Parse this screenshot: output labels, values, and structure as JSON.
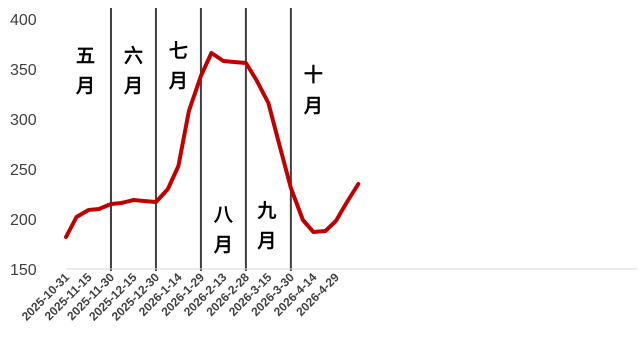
{
  "chart_data": {
    "type": "line",
    "title": "",
    "xlabel": "",
    "ylabel": "",
    "ylim": [
      150,
      400
    ],
    "yticks": [
      "150",
      "200",
      "250",
      "300",
      "350",
      "400"
    ],
    "grid": false,
    "legend": "none",
    "x_tick_labels": [
      "2025-10-31",
      "2025-11-15",
      "2025-11-30",
      "2025-12-15",
      "2025-12-30",
      "2026-1-14",
      "2026-1-29",
      "2026-2-13",
      "2026-2-28",
      "2026-3-15",
      "2026-3-30",
      "2026-4-14",
      "2026-4-29"
    ],
    "series": [
      {
        "color": "#c00000",
        "points": [
          {
            "x": "2025-10-31",
            "y": 182
          },
          {
            "x": "2025-11-07",
            "y": 202
          },
          {
            "x": "2025-11-15",
            "y": 209
          },
          {
            "x": "2025-11-22",
            "y": 210
          },
          {
            "x": "2025-11-30",
            "y": 215
          },
          {
            "x": "2025-12-07",
            "y": 216
          },
          {
            "x": "2025-12-15",
            "y": 219
          },
          {
            "x": "2025-12-22",
            "y": 218
          },
          {
            "x": "2025-12-30",
            "y": 217
          },
          {
            "x": "2026-01-07",
            "y": 230
          },
          {
            "x": "2026-01-14",
            "y": 253
          },
          {
            "x": "2026-01-21",
            "y": 308
          },
          {
            "x": "2026-01-29",
            "y": 343
          },
          {
            "x": "2026-02-05",
            "y": 366
          },
          {
            "x": "2026-02-13",
            "y": 358
          },
          {
            "x": "2026-02-20",
            "y": 357
          },
          {
            "x": "2026-02-28",
            "y": 356
          },
          {
            "x": "2026-03-07",
            "y": 339
          },
          {
            "x": "2026-03-15",
            "y": 316
          },
          {
            "x": "2026-03-22",
            "y": 276
          },
          {
            "x": "2026-03-30",
            "y": 231
          },
          {
            "x": "2026-04-07",
            "y": 199
          },
          {
            "x": "2026-04-14",
            "y": 187
          },
          {
            "x": "2026-04-22",
            "y": 188
          },
          {
            "x": "2026-04-29",
            "y": 198
          },
          {
            "x": "2026-05-06",
            "y": 216
          },
          {
            "x": "2026-05-14",
            "y": 235
          }
        ]
      }
    ],
    "dividers": [
      "2025-11-30",
      "2025-12-30",
      "2026-01-29",
      "2026-02-28",
      "2026-03-30"
    ],
    "period_labels": [
      {
        "text": [
          "五",
          "月"
        ],
        "at": "2025-11-13",
        "y": [
          357,
          327
        ]
      },
      {
        "text": [
          "六",
          "月"
        ],
        "at": "2025-12-15",
        "y": [
          357,
          327
        ]
      },
      {
        "text": [
          "七",
          "月"
        ],
        "at": "2026-01-14",
        "y": [
          362,
          332
        ]
      },
      {
        "text": [
          "八",
          "月"
        ],
        "at": "2026-02-13",
        "y": [
          198,
          168
        ]
      },
      {
        "text": [
          "九",
          "月"
        ],
        "at": "2026-03-14",
        "y": [
          202,
          172
        ]
      },
      {
        "text": [
          "十",
          "月"
        ],
        "at": "2026-04-14",
        "y": [
          338,
          307
        ]
      }
    ]
  }
}
